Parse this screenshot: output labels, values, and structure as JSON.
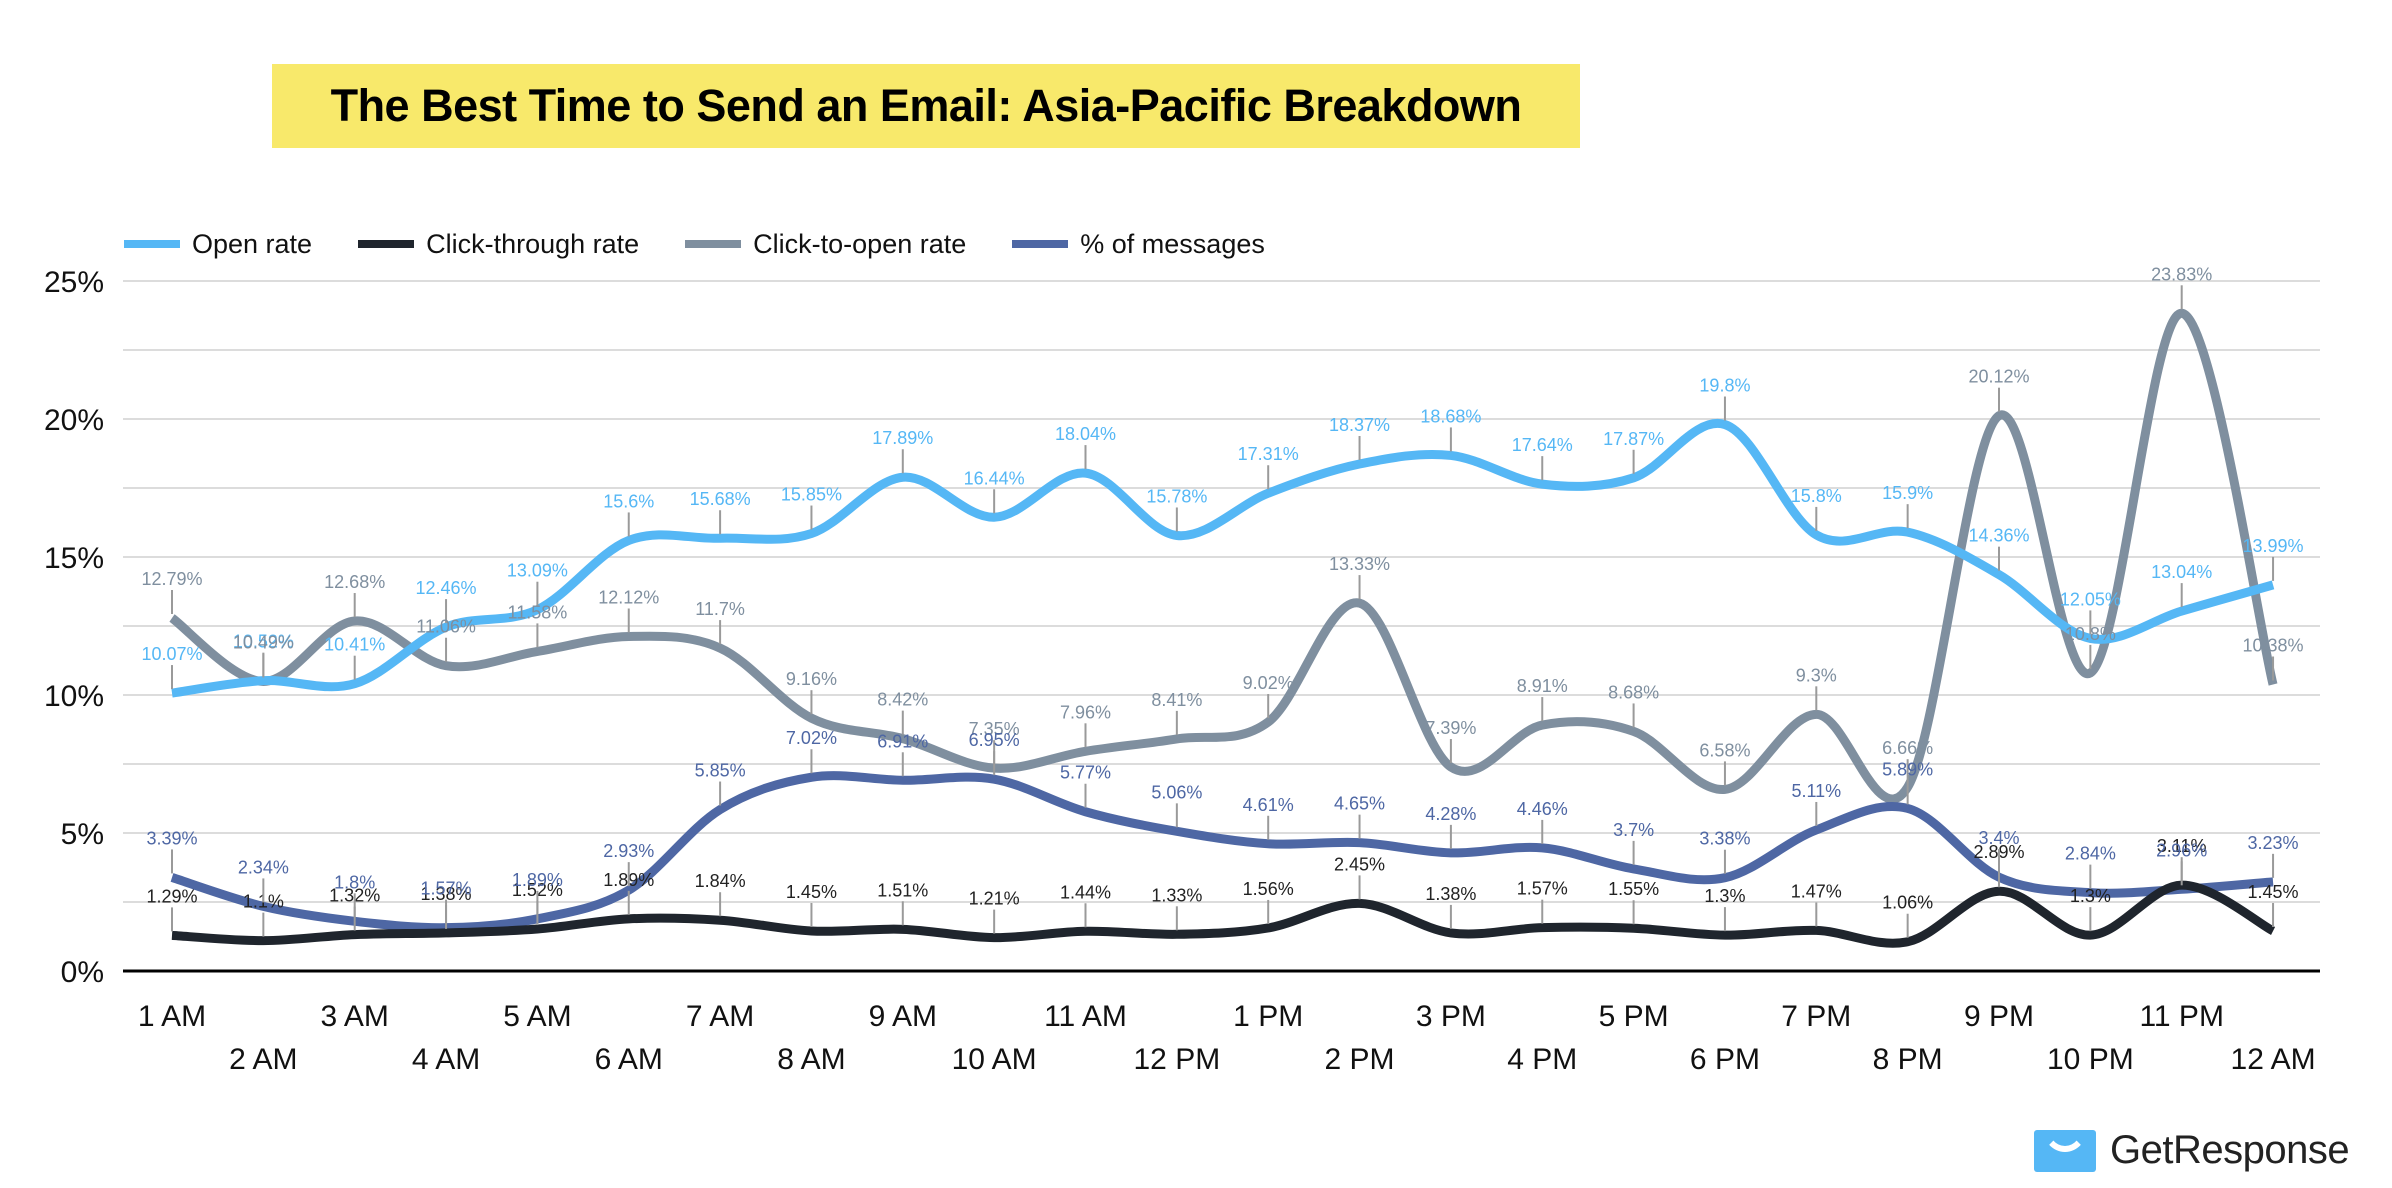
{
  "title": "The Best Time to Send an Email: Asia-Pacific Breakdown",
  "brand": {
    "name": "GetResponse",
    "color": "#55b7f5"
  },
  "legend": [
    {
      "label": "Open rate",
      "color": "#55b7f5"
    },
    {
      "label": "Click-through rate",
      "color": "#1f252d"
    },
    {
      "label": "Click-to-open rate",
      "color": "#7f8f9f"
    },
    {
      "label": "% of messages",
      "color": "#4e67a4"
    }
  ],
  "chart_data": {
    "type": "line",
    "title": "The Best Time to Send an Email: Asia-Pacific Breakdown",
    "xlabel": "",
    "ylabel": "",
    "ylim": [
      0,
      25
    ],
    "yticks": [
      "0%",
      "5%",
      "10%",
      "15%",
      "20%",
      "25%"
    ],
    "grid": true,
    "legend_position": "top-left",
    "categories": [
      "1 AM",
      "2 AM",
      "3 AM",
      "4 AM",
      "5 AM",
      "6 AM",
      "7 AM",
      "8 AM",
      "9 AM",
      "10 AM",
      "11 AM",
      "12 PM",
      "1 PM",
      "2 PM",
      "3 PM",
      "4 PM",
      "5 PM",
      "6 PM",
      "7 PM",
      "8 PM",
      "9 PM",
      "10 PM",
      "11 PM",
      "12 AM"
    ],
    "series": [
      {
        "name": "Open rate",
        "color": "#55b7f5",
        "values": [
          10.07,
          10.52,
          10.41,
          12.46,
          13.09,
          15.6,
          15.68,
          15.85,
          17.89,
          16.44,
          18.04,
          15.78,
          17.31,
          18.37,
          18.68,
          17.64,
          17.87,
          19.8,
          15.8,
          15.9,
          14.36,
          12.05,
          13.04,
          13.99
        ]
      },
      {
        "name": "Click-through rate",
        "color": "#1f252d",
        "values": [
          1.29,
          1.1,
          1.32,
          1.38,
          1.52,
          1.89,
          1.84,
          1.45,
          1.51,
          1.21,
          1.44,
          1.33,
          1.56,
          2.45,
          1.38,
          1.57,
          1.55,
          1.3,
          1.47,
          1.06,
          2.89,
          1.3,
          3.11,
          1.45
        ]
      },
      {
        "name": "Click-to-open rate",
        "color": "#7f8f9f",
        "values": [
          12.79,
          10.49,
          12.68,
          11.06,
          11.58,
          12.12,
          11.7,
          9.16,
          8.42,
          7.35,
          7.96,
          8.41,
          9.02,
          13.33,
          7.39,
          8.91,
          8.68,
          6.58,
          9.3,
          6.66,
          20.12,
          10.8,
          23.83,
          10.38
        ]
      },
      {
        "name": "% of messages",
        "color": "#4e67a4",
        "values": [
          3.39,
          2.34,
          1.8,
          1.57,
          1.89,
          2.93,
          5.85,
          7.02,
          6.91,
          6.95,
          5.77,
          5.06,
          4.61,
          4.65,
          4.28,
          4.46,
          3.7,
          3.38,
          5.11,
          5.89,
          3.4,
          2.84,
          2.96,
          3.23
        ]
      }
    ]
  }
}
